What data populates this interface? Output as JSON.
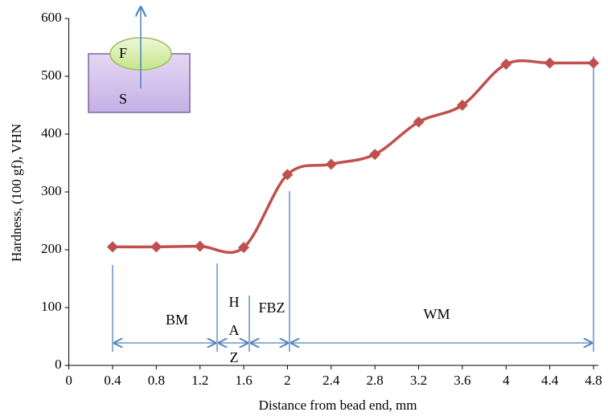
{
  "chart_data": {
    "type": "line",
    "x_label": "Distance from bead end, mm",
    "y_label": "Hardness, (100 gf), VHN",
    "x": [
      0.4,
      0.8,
      1.2,
      1.6,
      2.0,
      2.4,
      2.8,
      3.2,
      3.6,
      4.0,
      4.4,
      4.8
    ],
    "series": [
      {
        "color": "#c0504d",
        "values": [
          205,
          205,
          206,
          204,
          330,
          348,
          365,
          421,
          450,
          521,
          523,
          523
        ]
      }
    ],
    "xlim": [
      0,
      4.8
    ],
    "xticks": [
      0,
      0.4,
      0.8,
      1.2,
      1.6,
      2,
      2.4,
      2.8,
      3.2,
      3.6,
      4,
      4.4,
      4.8
    ],
    "ylim": [
      0,
      600
    ],
    "yticks": [
      0,
      100,
      200,
      300,
      400,
      500,
      600
    ],
    "grid": false,
    "annotations": [
      "BM",
      "H",
      "A",
      "Z",
      "FBZ",
      "WM",
      "F",
      "S"
    ]
  }
}
